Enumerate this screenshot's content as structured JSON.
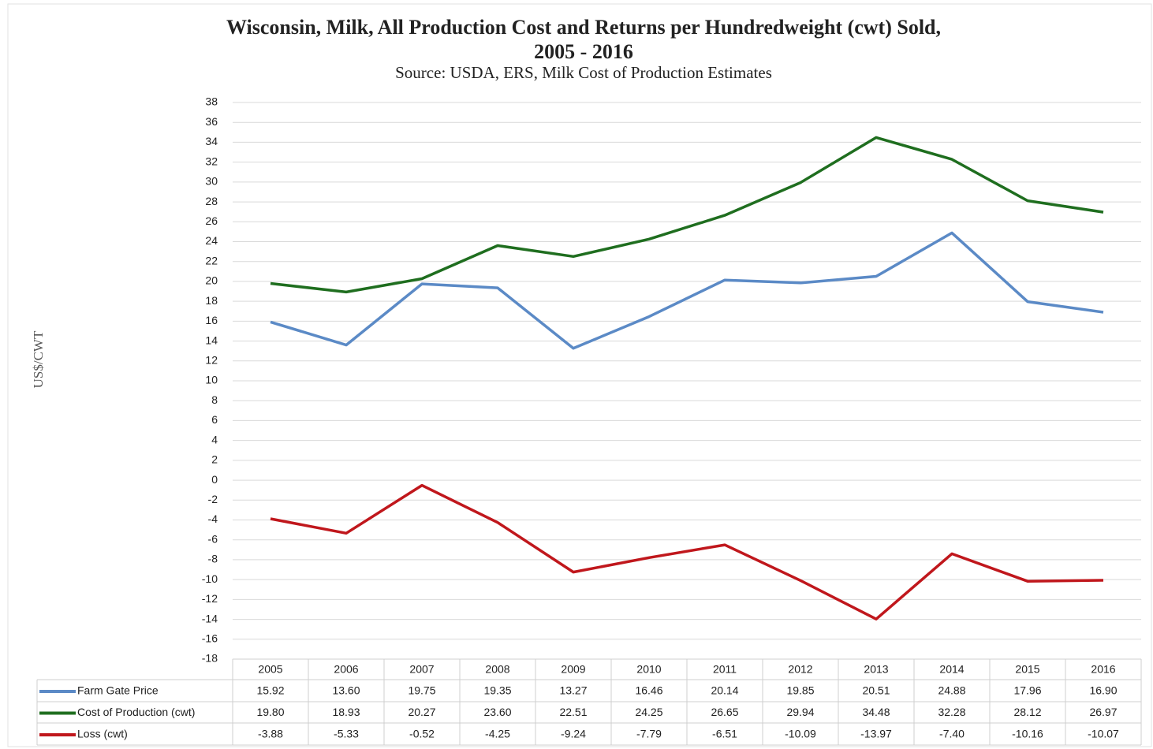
{
  "chart_data": {
    "type": "line",
    "title": [
      "Wisconsin, Milk, All Production Cost and Returns per Hundredweight (cwt) Sold,",
      "2005 - 2016"
    ],
    "subtitle": "Source: USDA, ERS, Milk Cost of Production Estimates",
    "y_label": "US$/CWT",
    "categories": [
      "2005",
      "2006",
      "2007",
      "2008",
      "2009",
      "2010",
      "2011",
      "2012",
      "2013",
      "2014",
      "2015",
      "2016"
    ],
    "series": [
      {
        "name": "Farm Gate Price",
        "color": "#5b8ac6",
        "values": [
          15.92,
          13.6,
          19.75,
          19.35,
          13.27,
          16.46,
          20.14,
          19.85,
          20.51,
          24.88,
          17.96,
          16.9
        ],
        "value_labels": [
          "15.92",
          "13.60",
          "19.75",
          "19.35",
          "13.27",
          "16.46",
          "20.14",
          "19.85",
          "20.51",
          "24.88",
          "17.96",
          "16.90"
        ]
      },
      {
        "name": "Cost of Production (cwt)",
        "color": "#1f6e1f",
        "values": [
          19.8,
          18.93,
          20.27,
          23.6,
          22.51,
          24.25,
          26.65,
          29.94,
          34.48,
          32.28,
          28.12,
          26.97
        ],
        "value_labels": [
          "19.80",
          "18.93",
          "20.27",
          "23.60",
          "22.51",
          "24.25",
          "26.65",
          "29.94",
          "34.48",
          "32.28",
          "28.12",
          "26.97"
        ]
      },
      {
        "name": "Loss (cwt)",
        "color": "#c0171c",
        "values": [
          -3.88,
          -5.33,
          -0.52,
          -4.25,
          -9.24,
          -7.79,
          -6.51,
          -10.09,
          -13.97,
          -7.4,
          -10.16,
          -10.07
        ],
        "value_labels": [
          "-3.88",
          "-5.33",
          "-0.52",
          "-4.25",
          "-9.24",
          "-7.79",
          "-6.51",
          "-10.09",
          "-13.97",
          "-7.40",
          "-10.16",
          "-10.07"
        ]
      }
    ],
    "ylim": [
      -18,
      38
    ],
    "yticks": [
      -18,
      -16,
      -14,
      -12,
      -10,
      -8,
      -6,
      -4,
      -2,
      0,
      2,
      4,
      6,
      8,
      10,
      12,
      14,
      16,
      18,
      20,
      22,
      24,
      26,
      28,
      30,
      32,
      34,
      36,
      38
    ],
    "grid": true,
    "data_table": true
  }
}
